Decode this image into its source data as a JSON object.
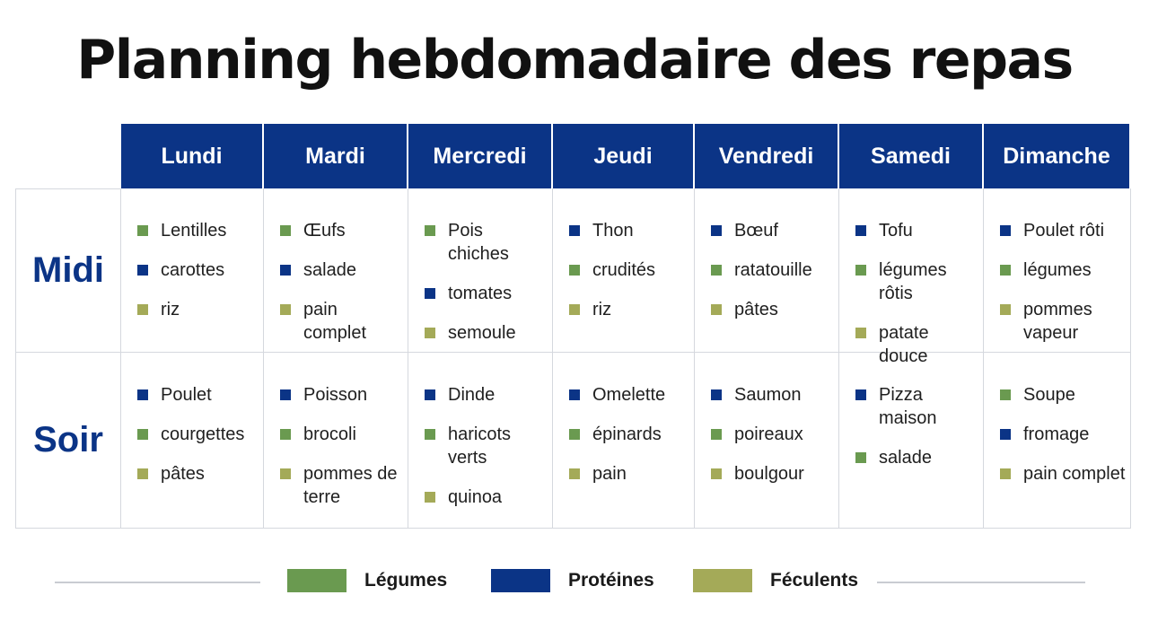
{
  "title": "Planning hebdomadaire des repas",
  "colors": {
    "header_bg": "#0b3486",
    "legumes": "#6a9a50",
    "proteines": "#0b3486",
    "feculents": "#a4aa58"
  },
  "days": [
    "Lundi",
    "Mardi",
    "Mercredi",
    "Jeudi",
    "Vendredi",
    "Samedi",
    "Dimanche"
  ],
  "meals": [
    {
      "label": "Midi",
      "cells": [
        [
          {
            "text": "Lentilles",
            "cat": "legumes"
          },
          {
            "text": "carottes",
            "cat": "proteines"
          },
          {
            "text": "riz",
            "cat": "feculents"
          }
        ],
        [
          {
            "text": "Œufs",
            "cat": "legumes"
          },
          {
            "text": "salade",
            "cat": "proteines"
          },
          {
            "text": "pain complet",
            "cat": "feculents"
          }
        ],
        [
          {
            "text": "Pois chiches",
            "cat": "legumes"
          },
          {
            "text": "tomates",
            "cat": "proteines"
          },
          {
            "text": "semoule",
            "cat": "feculents"
          }
        ],
        [
          {
            "text": "Thon",
            "cat": "proteines"
          },
          {
            "text": "crudités",
            "cat": "legumes"
          },
          {
            "text": "riz",
            "cat": "feculents"
          }
        ],
        [
          {
            "text": "Bœuf",
            "cat": "proteines"
          },
          {
            "text": "ratatouille",
            "cat": "legumes"
          },
          {
            "text": "pâtes",
            "cat": "feculents"
          }
        ],
        [
          {
            "text": "Tofu",
            "cat": "proteines"
          },
          {
            "text": "légumes rôtis",
            "cat": "legumes"
          },
          {
            "text": "patate douce",
            "cat": "feculents"
          }
        ],
        [
          {
            "text": "Poulet rôti",
            "cat": "proteines"
          },
          {
            "text": "légumes",
            "cat": "legumes"
          },
          {
            "text": "pommes vapeur",
            "cat": "feculents"
          }
        ]
      ]
    },
    {
      "label": "Soir",
      "cells": [
        [
          {
            "text": "Poulet",
            "cat": "proteines"
          },
          {
            "text": "courgettes",
            "cat": "legumes"
          },
          {
            "text": "pâtes",
            "cat": "feculents"
          }
        ],
        [
          {
            "text": "Poisson",
            "cat": "proteines"
          },
          {
            "text": "brocoli",
            "cat": "legumes"
          },
          {
            "text": "pommes de terre",
            "cat": "feculents"
          }
        ],
        [
          {
            "text": "Dinde",
            "cat": "proteines"
          },
          {
            "text": "haricots verts",
            "cat": "legumes"
          },
          {
            "text": "quinoa",
            "cat": "feculents"
          }
        ],
        [
          {
            "text": "Omelette",
            "cat": "proteines"
          },
          {
            "text": "épinards",
            "cat": "legumes"
          },
          {
            "text": "pain",
            "cat": "feculents"
          }
        ],
        [
          {
            "text": "Saumon",
            "cat": "proteines"
          },
          {
            "text": "poireaux",
            "cat": "legumes"
          },
          {
            "text": "boulgour",
            "cat": "feculents"
          }
        ],
        [
          {
            "text": "Pizza maison",
            "cat": "proteines"
          },
          {
            "text": "salade",
            "cat": "legumes"
          }
        ],
        [
          {
            "text": "Soupe",
            "cat": "legumes"
          },
          {
            "text": "fromage",
            "cat": "proteines"
          },
          {
            "text": "pain complet",
            "cat": "feculents"
          }
        ]
      ]
    }
  ],
  "legend": [
    {
      "key": "legumes",
      "label": "Légumes"
    },
    {
      "key": "proteines",
      "label": "Protéines"
    },
    {
      "key": "feculents",
      "label": "Féculents"
    }
  ]
}
